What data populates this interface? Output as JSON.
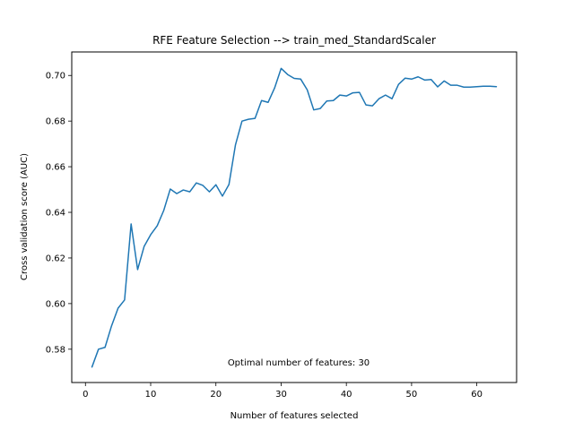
{
  "chart_data": {
    "type": "line",
    "title": "RFE Feature Selection --> train_med_StandardScaler",
    "xlabel": "Number of features selected",
    "ylabel": "Cross validation score (AUC)",
    "annotation": "Optimal number of features: 30",
    "xlim": [
      -2.1,
      66.1
    ],
    "ylim": [
      0.5654,
      0.7103
    ],
    "x_ticks": [
      0,
      10,
      20,
      30,
      40,
      50,
      60
    ],
    "x_tick_labels": [
      "0",
      "10",
      "20",
      "30",
      "40",
      "50",
      "60"
    ],
    "y_ticks": [
      0.58,
      0.6,
      0.62,
      0.64,
      0.66,
      0.68,
      0.7
    ],
    "y_tick_labels": [
      "0.58",
      "0.60",
      "0.62",
      "0.64",
      "0.66",
      "0.68",
      "0.70"
    ],
    "grid": false,
    "legend": "none",
    "series": [
      {
        "color": "#1f77b4",
        "x": [
          1,
          2,
          3,
          4,
          5,
          6,
          7,
          8,
          9,
          10,
          11,
          12,
          13,
          14,
          15,
          16,
          17,
          18,
          19,
          20,
          21,
          22,
          23,
          24,
          25,
          26,
          27,
          28,
          29,
          30,
          31,
          32,
          33,
          34,
          35,
          36,
          37,
          38,
          39,
          40,
          41,
          42,
          43,
          44,
          45,
          46,
          47,
          48,
          49,
          50,
          51,
          52,
          53,
          54,
          55,
          56,
          57,
          58,
          59,
          60,
          61,
          62,
          63
        ],
        "values": [
          0.5722,
          0.58,
          0.5808,
          0.5902,
          0.598,
          0.6016,
          0.6349,
          0.6149,
          0.6251,
          0.6302,
          0.6341,
          0.6408,
          0.6502,
          0.6482,
          0.6498,
          0.649,
          0.6529,
          0.6518,
          0.649,
          0.6521,
          0.6471,
          0.6522,
          0.6696,
          0.68,
          0.6808,
          0.6812,
          0.689,
          0.6882,
          0.6945,
          0.7031,
          0.7004,
          0.6987,
          0.6984,
          0.6937,
          0.6849,
          0.6855,
          0.6888,
          0.689,
          0.6914,
          0.691,
          0.6924,
          0.6926,
          0.6871,
          0.6867,
          0.6898,
          0.6914,
          0.6898,
          0.6961,
          0.6988,
          0.6984,
          0.6994,
          0.698,
          0.6982,
          0.695,
          0.6976,
          0.6957,
          0.6957,
          0.6949,
          0.6949,
          0.6951,
          0.6953,
          0.6953,
          0.6951
        ]
      }
    ]
  }
}
